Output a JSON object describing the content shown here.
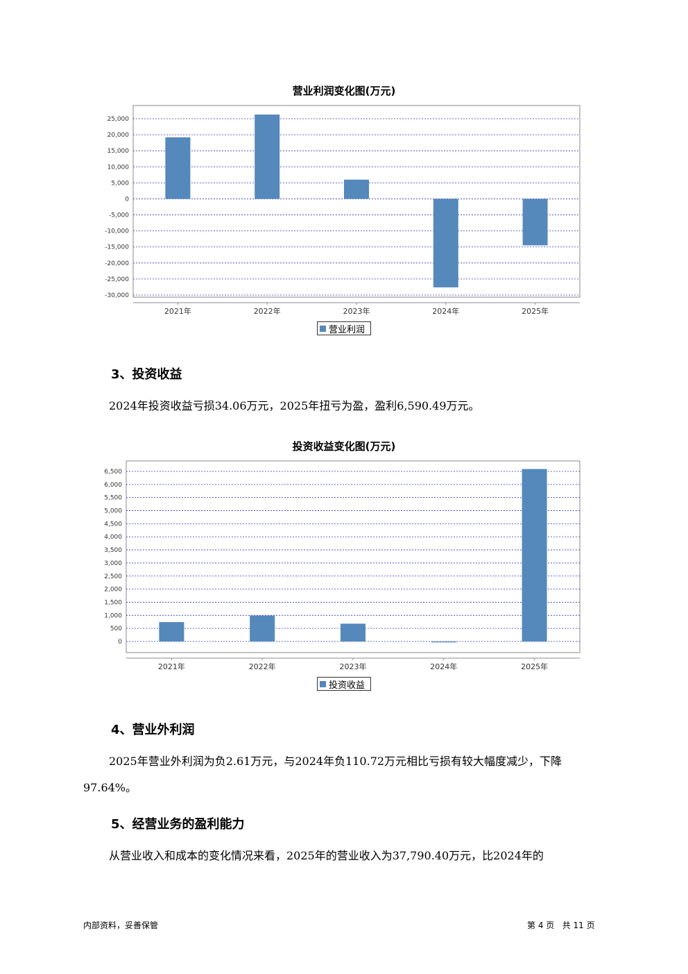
{
  "chart1": {
    "title": "营业利润变化图(万元)",
    "legend": "营业利润"
  },
  "section3": {
    "heading": "3、投资收益",
    "paragraph": "2024年投资收益亏损34.06万元，2025年扭亏为盈，盈利6,590.49万元。"
  },
  "chart2": {
    "title": "投资收益变化图(万元)",
    "legend": "投资收益"
  },
  "section4": {
    "heading": "4、营业外利润",
    "paragraph": "2025年营业外利润为负2.61万元，与2024年负110.72万元相比亏损有较大幅度减少，下降97.64%。"
  },
  "section5": {
    "heading": "5、经营业务的盈利能力",
    "paragraph": "从营业收入和成本的变化情况来看，2025年的营业收入为37,790.40万元，比2024年的"
  },
  "footer": {
    "left": "内部资料，妥善保管",
    "right": "第 4 页   共 11 页"
  },
  "chart_data": [
    {
      "type": "bar",
      "title": "营业利润变化图(万元)",
      "categories": [
        "2021年",
        "2022年",
        "2023年",
        "2024年",
        "2025年"
      ],
      "series": [
        {
          "name": "营业利润",
          "values": [
            19200,
            26300,
            6000,
            -27600,
            -14500
          ]
        }
      ],
      "ylim": [
        -30000,
        25000
      ],
      "yticks": [
        25000,
        20000,
        15000,
        10000,
        5000,
        0,
        -5000,
        -10000,
        -15000,
        -20000,
        -25000,
        -30000
      ],
      "ytick_labels": [
        "25,000",
        "20,000",
        "15,000",
        "10,000",
        "5,000",
        "0",
        "-5,000",
        "-10,000",
        "-15,000",
        "-20,000",
        "-25,000",
        "-30,000"
      ],
      "color": "#5588bb",
      "grid": true,
      "legend_position": "bottom"
    },
    {
      "type": "bar",
      "title": "投资收益变化图(万元)",
      "categories": [
        "2021年",
        "2022年",
        "2023年",
        "2024年",
        "2025年"
      ],
      "series": [
        {
          "name": "投资收益",
          "values": [
            740,
            990,
            680,
            -34.06,
            6590.49
          ]
        }
      ],
      "ylim": [
        0,
        6500
      ],
      "yticks": [
        6500,
        6000,
        5500,
        5000,
        4500,
        4000,
        3500,
        3000,
        2500,
        2000,
        1500,
        1000,
        500,
        0
      ],
      "ytick_labels": [
        "6,500",
        "6,000",
        "5,500",
        "5,000",
        "4,500",
        "4,000",
        "3,500",
        "3,000",
        "2,500",
        "2,000",
        "1,500",
        "1,000",
        "500",
        "0"
      ],
      "color": "#5588bb",
      "grid": true,
      "legend_position": "bottom"
    }
  ]
}
